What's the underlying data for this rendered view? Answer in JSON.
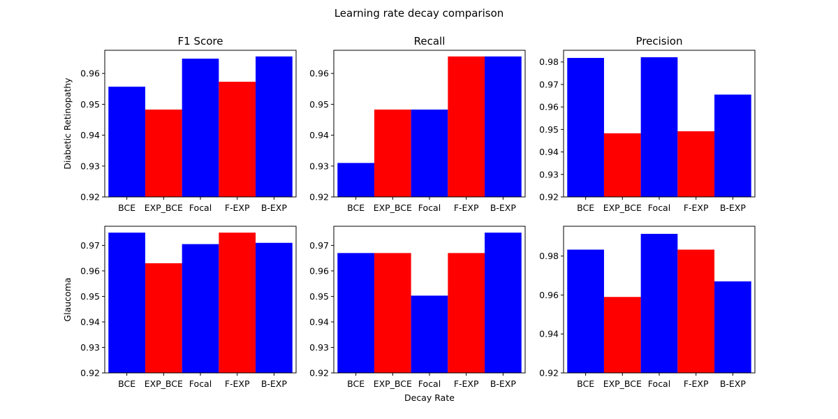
{
  "figure": {
    "title": "Learning rate decay comparison",
    "xlabel": "Decay Rate"
  },
  "colors": {
    "blue": "#0000ff",
    "red": "#ff0000"
  },
  "chart_data": [
    {
      "type": "bar",
      "title": "F1 Score",
      "ylabel": "Diabetic Retinopathy",
      "xlabel": "",
      "categories": [
        "BCE",
        "EXP_BCE",
        "Focal",
        "F-EXP",
        "B-EXP"
      ],
      "values": [
        0.9557,
        0.9483,
        0.9648,
        0.9573,
        0.9655
      ],
      "bar_colors": [
        "blue",
        "red",
        "blue",
        "red",
        "blue"
      ],
      "ylim": [
        0.92,
        0.9675
      ],
      "yticks": [
        "0.92",
        "0.93",
        "0.94",
        "0.95",
        "0.96"
      ]
    },
    {
      "type": "bar",
      "title": "Recall",
      "ylabel": "",
      "xlabel": "",
      "categories": [
        "BCE",
        "EXP_BCE",
        "Focal",
        "F-EXP",
        "B-EXP"
      ],
      "values": [
        0.931,
        0.9483,
        0.9483,
        0.9655,
        0.9655
      ],
      "bar_colors": [
        "blue",
        "red",
        "blue",
        "red",
        "blue"
      ],
      "ylim": [
        0.92,
        0.9675
      ],
      "yticks": [
        "0.92",
        "0.93",
        "0.94",
        "0.95",
        "0.96"
      ]
    },
    {
      "type": "bar",
      "title": "Precision",
      "ylabel": "",
      "xlabel": "",
      "categories": [
        "BCE",
        "EXP_BCE",
        "Focal",
        "F-EXP",
        "B-EXP"
      ],
      "values": [
        0.9818,
        0.9483,
        0.9821,
        0.9492,
        0.9655
      ],
      "bar_colors": [
        "blue",
        "red",
        "blue",
        "red",
        "blue"
      ],
      "ylim": [
        0.92,
        0.9852
      ],
      "yticks": [
        "0.92",
        "0.93",
        "0.94",
        "0.95",
        "0.96",
        "0.97",
        "0.98"
      ]
    },
    {
      "type": "bar",
      "title": "",
      "ylabel": "Glaucoma",
      "xlabel": "",
      "categories": [
        "BCE",
        "EXP_BCE",
        "Focal",
        "F-EXP",
        "B-EXP"
      ],
      "values": [
        0.975,
        0.963,
        0.9705,
        0.975,
        0.971
      ],
      "bar_colors": [
        "blue",
        "red",
        "blue",
        "red",
        "blue"
      ],
      "ylim": [
        0.92,
        0.9775
      ],
      "yticks": [
        "0.92",
        "0.93",
        "0.94",
        "0.95",
        "0.96",
        "0.97"
      ]
    },
    {
      "type": "bar",
      "title": "",
      "ylabel": "",
      "xlabel": "Decay Rate",
      "categories": [
        "BCE",
        "EXP_BCE",
        "Focal",
        "F-EXP",
        "B-EXP"
      ],
      "values": [
        0.967,
        0.967,
        0.9503,
        0.967,
        0.975
      ],
      "bar_colors": [
        "blue",
        "red",
        "blue",
        "red",
        "blue"
      ],
      "ylim": [
        0.92,
        0.9775
      ],
      "yticks": [
        "0.92",
        "0.93",
        "0.94",
        "0.95",
        "0.96",
        "0.97"
      ]
    },
    {
      "type": "bar",
      "title": "",
      "ylabel": "",
      "xlabel": "",
      "categories": [
        "BCE",
        "EXP_BCE",
        "Focal",
        "F-EXP",
        "B-EXP"
      ],
      "values": [
        0.9833,
        0.959,
        0.9914,
        0.9833,
        0.967
      ],
      "bar_colors": [
        "blue",
        "red",
        "blue",
        "red",
        "blue"
      ],
      "ylim": [
        0.92,
        0.9953
      ],
      "yticks": [
        "0.92",
        "0.94",
        "0.96",
        "0.98"
      ]
    }
  ]
}
